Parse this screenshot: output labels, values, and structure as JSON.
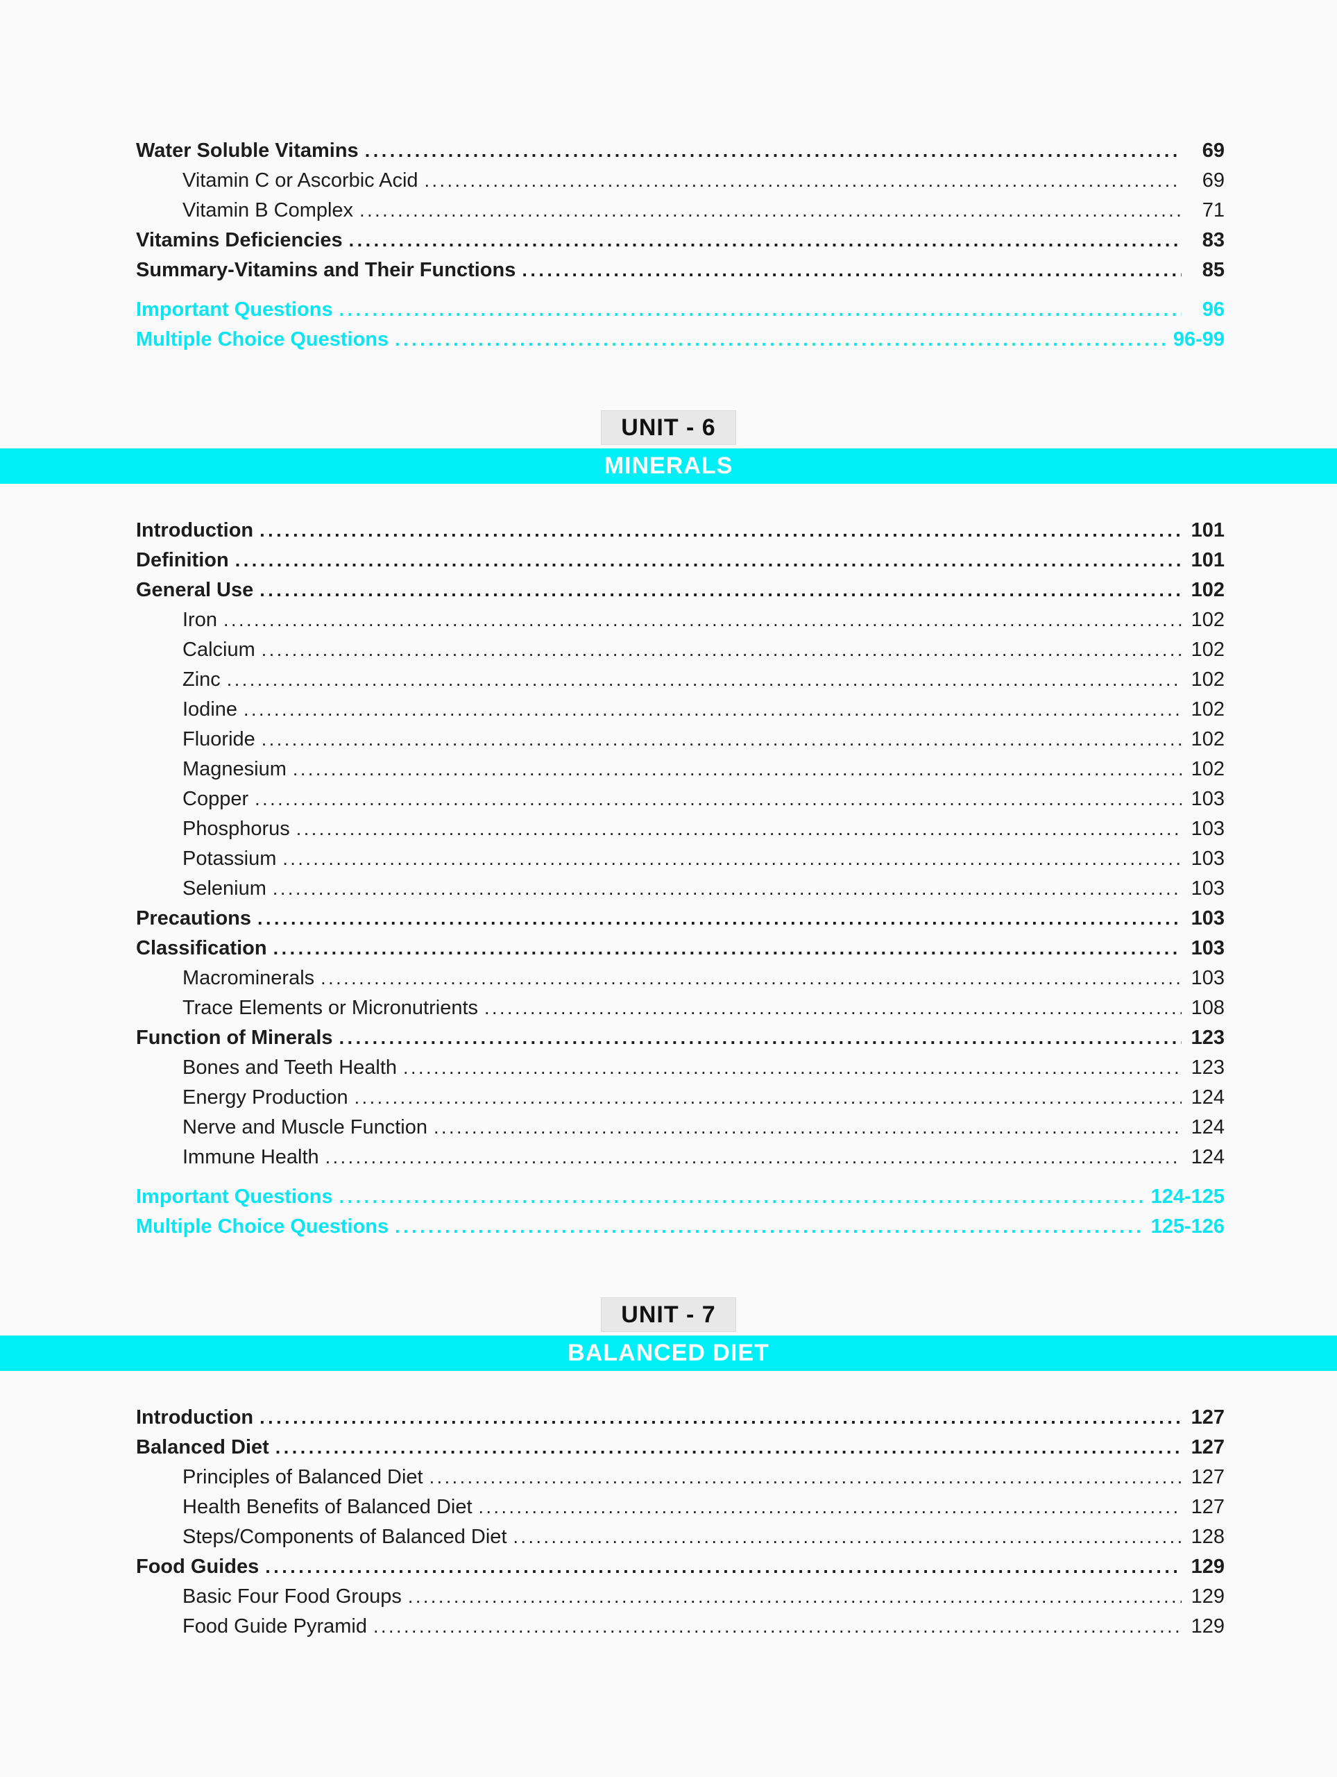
{
  "colors": {
    "accent_cyan_bar": "#00eff6",
    "accent_cyan_text": "#0ce4f1",
    "badge_bg": "#e8e8e8",
    "page_bg": "#fafafa",
    "text": "#1c1c1c"
  },
  "units": [
    {
      "badge": "UNIT - 6",
      "title": "MINERALS"
    },
    {
      "badge": "UNIT - 7",
      "title": "BALANCED DIET"
    }
  ],
  "sections": [
    {
      "entries": [
        {
          "label": "Water Soluble Vitamins",
          "page": "69",
          "bold": true
        },
        {
          "label": "Vitamin C or Ascorbic Acid",
          "page": "69",
          "indent": true
        },
        {
          "label": "Vitamin B Complex",
          "page": "71",
          "indent": true
        },
        {
          "label": "Vitamins Deficiencies",
          "page": "83",
          "bold": true
        },
        {
          "label": "Summary-Vitamins and Their Functions",
          "page": "85",
          "bold": true
        },
        {
          "label": "Important Questions",
          "page": "96",
          "bold": true,
          "cyan": true,
          "gap": true
        },
        {
          "label": "Multiple Choice Questions",
          "page": "96-99",
          "bold": true,
          "cyan": true
        }
      ]
    },
    {
      "entries": [
        {
          "label": "Introduction",
          "page": "101",
          "bold": true
        },
        {
          "label": "Definition",
          "page": "101",
          "bold": true
        },
        {
          "label": "General Use",
          "page": "102",
          "bold": true
        },
        {
          "label": "Iron",
          "page": "102",
          "indent": true
        },
        {
          "label": "Calcium",
          "page": "102",
          "indent": true
        },
        {
          "label": "Zinc",
          "page": "102",
          "indent": true
        },
        {
          "label": "Iodine",
          "page": "102",
          "indent": true
        },
        {
          "label": "Fluoride",
          "page": "102",
          "indent": true
        },
        {
          "label": "Magnesium",
          "page": "102",
          "indent": true
        },
        {
          "label": "Copper",
          "page": "103",
          "indent": true
        },
        {
          "label": "Phosphorus",
          "page": "103",
          "indent": true
        },
        {
          "label": "Potassium",
          "page": "103",
          "indent": true
        },
        {
          "label": "Selenium",
          "page": "103",
          "indent": true
        },
        {
          "label": "Precautions",
          "page": "103",
          "bold": true
        },
        {
          "label": "Classification",
          "page": "103",
          "bold": true
        },
        {
          "label": "Macrominerals",
          "page": "103",
          "indent": true
        },
        {
          "label": "Trace Elements or Micronutrients",
          "page": "108",
          "indent": true
        },
        {
          "label": "Function of Minerals",
          "page": "123",
          "bold": true
        },
        {
          "label": "Bones and Teeth Health",
          "page": "123",
          "indent": true
        },
        {
          "label": "Energy Production",
          "page": "124",
          "indent": true
        },
        {
          "label": "Nerve and Muscle Function",
          "page": "124",
          "indent": true
        },
        {
          "label": "Immune Health",
          "page": "124",
          "indent": true
        },
        {
          "label": "Important Questions",
          "page": "124-125",
          "bold": true,
          "cyan": true,
          "gap": true
        },
        {
          "label": "Multiple Choice Questions",
          "page": "125-126",
          "bold": true,
          "cyan": true
        }
      ]
    },
    {
      "entries": [
        {
          "label": "Introduction",
          "page": "127",
          "bold": true
        },
        {
          "label": "Balanced Diet",
          "page": "127",
          "bold": true
        },
        {
          "label": "Principles of Balanced Diet",
          "page": "127",
          "indent": true
        },
        {
          "label": "Health Benefits of Balanced Diet",
          "page": "127",
          "indent": true
        },
        {
          "label": "Steps/Components of Balanced Diet",
          "page": "128",
          "indent": true
        },
        {
          "label": "Food Guides",
          "page": "129",
          "bold": true
        },
        {
          "label": "Basic Four Food Groups",
          "page": "129",
          "indent": true
        },
        {
          "label": "Food Guide Pyramid",
          "page": "129",
          "indent": true
        }
      ]
    }
  ]
}
